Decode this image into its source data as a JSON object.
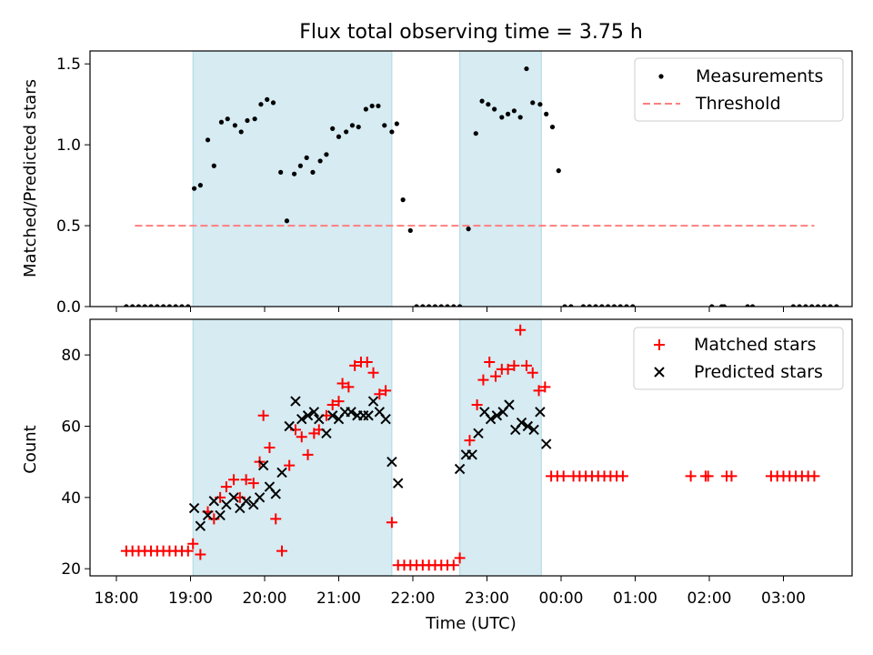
{
  "title": "Flux total observing time = 3.75 h",
  "colors": {
    "observing_span": "#add8e6",
    "measurement": "#000000",
    "threshold": "#ff7f7f",
    "matched": "#ff0000",
    "predicted": "#000000"
  },
  "chart_data": [
    {
      "type": "scatter",
      "ylabel": "Matched/Predicted stars",
      "ylim": [
        0,
        1.58
      ],
      "yticks": [
        "0.0",
        "0.5",
        "1.0",
        "1.5"
      ],
      "xlim": [
        "18:00",
        "03:55"
      ],
      "legend": {
        "placement": "top-right",
        "entries": [
          "Measurements",
          "Threshold"
        ]
      },
      "threshold": {
        "name": "Threshold",
        "value": 0.5,
        "x": [
          "18:15",
          "03:25"
        ]
      },
      "observing_spans": [
        [
          "19:02",
          "21:43"
        ],
        [
          "22:38",
          "23:44"
        ]
      ],
      "series": [
        {
          "name": "Measurements",
          "points": [
            [
              "18:08",
              0
            ],
            [
              "18:13",
              0
            ],
            [
              "18:18",
              0
            ],
            [
              "18:23",
              0
            ],
            [
              "18:28",
              0
            ],
            [
              "18:33",
              0
            ],
            [
              "18:38",
              0
            ],
            [
              "18:43",
              0
            ],
            [
              "18:48",
              0
            ],
            [
              "18:53",
              0
            ],
            [
              "18:58",
              0
            ],
            [
              "19:03",
              0.73
            ],
            [
              "19:08",
              0.75
            ],
            [
              "19:14",
              1.03
            ],
            [
              "19:19",
              0.87
            ],
            [
              "19:25",
              1.14
            ],
            [
              "19:30",
              1.16
            ],
            [
              "19:36",
              1.12
            ],
            [
              "19:41",
              1.08
            ],
            [
              "19:46",
              1.15
            ],
            [
              "19:52",
              1.16
            ],
            [
              "19:57",
              1.25
            ],
            [
              "20:02",
              1.28
            ],
            [
              "20:07",
              1.26
            ],
            [
              "20:13",
              0.83
            ],
            [
              "20:18",
              0.53
            ],
            [
              "20:24",
              0.82
            ],
            [
              "20:29",
              0.87
            ],
            [
              "20:34",
              0.92
            ],
            [
              "20:39",
              0.83
            ],
            [
              "20:45",
              0.9
            ],
            [
              "20:50",
              0.94
            ],
            [
              "20:55",
              1.1
            ],
            [
              "21:00",
              1.05
            ],
            [
              "21:06",
              1.08
            ],
            [
              "21:11",
              1.12
            ],
            [
              "21:16",
              1.11
            ],
            [
              "21:22",
              1.22
            ],
            [
              "21:27",
              1.24
            ],
            [
              "21:32",
              1.24
            ],
            [
              "21:37",
              1.12
            ],
            [
              "21:43",
              1.08
            ],
            [
              "21:47",
              1.13
            ],
            [
              "21:52",
              0.66
            ],
            [
              "21:58",
              0.47
            ],
            [
              "22:03",
              0
            ],
            [
              "22:08",
              0
            ],
            [
              "22:13",
              0
            ],
            [
              "22:18",
              0
            ],
            [
              "22:23",
              0
            ],
            [
              "22:28",
              0
            ],
            [
              "22:33",
              0
            ],
            [
              "22:38",
              0
            ],
            [
              "22:45",
              0.48
            ],
            [
              "22:51",
              1.07
            ],
            [
              "22:56",
              1.27
            ],
            [
              "23:01",
              1.25
            ],
            [
              "23:06",
              1.22
            ],
            [
              "23:12",
              1.17
            ],
            [
              "23:17",
              1.19
            ],
            [
              "23:22",
              1.21
            ],
            [
              "23:27",
              1.17
            ],
            [
              "23:32",
              1.47
            ],
            [
              "23:37",
              1.26
            ],
            [
              "23:43",
              1.25
            ],
            [
              "23:48",
              1.19
            ],
            [
              "23:53",
              1.11
            ],
            [
              "23:58",
              0.84
            ],
            [
              "00:03",
              0
            ],
            [
              "00:08",
              0
            ],
            [
              "00:18",
              0
            ],
            [
              "00:23",
              0
            ],
            [
              "00:28",
              0
            ],
            [
              "00:33",
              0
            ],
            [
              "00:38",
              0
            ],
            [
              "00:43",
              0
            ],
            [
              "00:48",
              0
            ],
            [
              "00:53",
              0
            ],
            [
              "00:58",
              0
            ],
            [
              "02:02",
              0
            ],
            [
              "02:10",
              0
            ],
            [
              "02:12",
              0
            ],
            [
              "02:31",
              0
            ],
            [
              "02:35",
              0
            ],
            [
              "03:08",
              0
            ],
            [
              "03:13",
              0
            ],
            [
              "03:18",
              0
            ],
            [
              "03:23",
              0
            ],
            [
              "03:28",
              0
            ],
            [
              "03:33",
              0
            ],
            [
              "03:38",
              0
            ],
            [
              "03:43",
              0
            ]
          ]
        }
      ]
    },
    {
      "type": "scatter",
      "xlabel": "Time (UTC)",
      "ylabel": "Count",
      "ylim": [
        18,
        90
      ],
      "yticks": [
        "20",
        "40",
        "60",
        "80"
      ],
      "xlim": [
        "18:00",
        "03:55"
      ],
      "xticks": [
        "18:00",
        "19:00",
        "20:00",
        "21:00",
        "22:00",
        "23:00",
        "00:00",
        "01:00",
        "02:00",
        "03:00"
      ],
      "legend": {
        "placement": "top-right",
        "entries": [
          "Matched stars",
          "Predicted stars"
        ]
      },
      "observing_spans": [
        [
          "19:02",
          "21:43"
        ],
        [
          "22:38",
          "23:44"
        ]
      ],
      "series": [
        {
          "name": "Matched stars",
          "points": [
            [
              "18:08",
              25
            ],
            [
              "18:13",
              25
            ],
            [
              "18:18",
              25
            ],
            [
              "18:23",
              25
            ],
            [
              "18:28",
              25
            ],
            [
              "18:33",
              25
            ],
            [
              "18:38",
              25
            ],
            [
              "18:43",
              25
            ],
            [
              "18:48",
              25
            ],
            [
              "18:53",
              25
            ],
            [
              "18:58",
              25
            ],
            [
              "19:02",
              27
            ],
            [
              "19:08",
              24
            ],
            [
              "19:14",
              36
            ],
            [
              "19:19",
              34
            ],
            [
              "19:24",
              40
            ],
            [
              "19:29",
              43
            ],
            [
              "19:35",
              45
            ],
            [
              "19:40",
              40
            ],
            [
              "19:45",
              45
            ],
            [
              "19:51",
              44
            ],
            [
              "19:56",
              50
            ],
            [
              "19:59",
              63
            ],
            [
              "20:04",
              54
            ],
            [
              "20:09",
              34
            ],
            [
              "20:14",
              25
            ],
            [
              "20:20",
              49
            ],
            [
              "20:25",
              59
            ],
            [
              "20:30",
              57
            ],
            [
              "20:35",
              52
            ],
            [
              "20:40",
              58
            ],
            [
              "20:44",
              59
            ],
            [
              "20:50",
              63
            ],
            [
              "20:55",
              66
            ],
            [
              "21:00",
              67
            ],
            [
              "21:03",
              72
            ],
            [
              "21:08",
              71
            ],
            [
              "21:13",
              77
            ],
            [
              "21:18",
              78
            ],
            [
              "21:23",
              78
            ],
            [
              "21:28",
              75
            ],
            [
              "21:33",
              69
            ],
            [
              "21:38",
              70
            ],
            [
              "21:43",
              33
            ],
            [
              "21:48",
              21
            ],
            [
              "21:53",
              21
            ],
            [
              "21:58",
              21
            ],
            [
              "22:03",
              21
            ],
            [
              "22:08",
              21
            ],
            [
              "22:13",
              21
            ],
            [
              "22:18",
              21
            ],
            [
              "22:23",
              21
            ],
            [
              "22:28",
              21
            ],
            [
              "22:33",
              21
            ],
            [
              "22:38",
              23
            ],
            [
              "22:46",
              56
            ],
            [
              "22:52",
              66
            ],
            [
              "22:57",
              73
            ],
            [
              "23:02",
              78
            ],
            [
              "23:07",
              74
            ],
            [
              "23:12",
              76
            ],
            [
              "23:17",
              76
            ],
            [
              "23:22",
              77
            ],
            [
              "23:27",
              87
            ],
            [
              "23:32",
              77
            ],
            [
              "23:37",
              75
            ],
            [
              "23:42",
              70
            ],
            [
              "23:47",
              71
            ],
            [
              "23:52",
              46
            ],
            [
              "23:57",
              46
            ],
            [
              "00:02",
              46
            ],
            [
              "00:10",
              46
            ],
            [
              "00:15",
              46
            ],
            [
              "00:20",
              46
            ],
            [
              "00:25",
              46
            ],
            [
              "00:30",
              46
            ],
            [
              "00:35",
              46
            ],
            [
              "00:40",
              46
            ],
            [
              "00:45",
              46
            ],
            [
              "00:50",
              46
            ],
            [
              "01:45",
              46
            ],
            [
              "01:57",
              46
            ],
            [
              "01:59",
              46
            ],
            [
              "02:14",
              46
            ],
            [
              "02:18",
              46
            ],
            [
              "02:50",
              46
            ],
            [
              "02:55",
              46
            ],
            [
              "03:00",
              46
            ],
            [
              "03:05",
              46
            ],
            [
              "03:10",
              46
            ],
            [
              "03:15",
              46
            ],
            [
              "03:20",
              46
            ],
            [
              "03:25",
              46
            ]
          ]
        },
        {
          "name": "Predicted stars",
          "points": [
            [
              "19:03",
              37
            ],
            [
              "19:08",
              32
            ],
            [
              "19:14",
              35
            ],
            [
              "19:19",
              39
            ],
            [
              "19:24",
              35
            ],
            [
              "19:29",
              38
            ],
            [
              "19:35",
              40
            ],
            [
              "19:40",
              37
            ],
            [
              "19:45",
              39
            ],
            [
              "19:51",
              38
            ],
            [
              "19:56",
              40
            ],
            [
              "19:59",
              49
            ],
            [
              "20:04",
              43
            ],
            [
              "20:09",
              41
            ],
            [
              "20:14",
              47
            ],
            [
              "20:20",
              60
            ],
            [
              "20:25",
              67
            ],
            [
              "20:30",
              62
            ],
            [
              "20:35",
              63
            ],
            [
              "20:40",
              64
            ],
            [
              "20:44",
              62
            ],
            [
              "20:50",
              58
            ],
            [
              "20:55",
              63
            ],
            [
              "21:00",
              62
            ],
            [
              "21:05",
              64
            ],
            [
              "21:10",
              64
            ],
            [
              "21:15",
              63
            ],
            [
              "21:20",
              63
            ],
            [
              "21:24",
              63
            ],
            [
              "21:28",
              67
            ],
            [
              "21:33",
              64
            ],
            [
              "21:38",
              62
            ],
            [
              "21:43",
              50
            ],
            [
              "21:48",
              44
            ],
            [
              "22:38",
              48
            ],
            [
              "22:43",
              52
            ],
            [
              "22:48",
              52
            ],
            [
              "22:53",
              58
            ],
            [
              "22:58",
              64
            ],
            [
              "23:03",
              62
            ],
            [
              "23:08",
              63
            ],
            [
              "23:13",
              64
            ],
            [
              "23:18",
              66
            ],
            [
              "23:23",
              59
            ],
            [
              "23:28",
              61
            ],
            [
              "23:33",
              60
            ],
            [
              "23:38",
              59
            ],
            [
              "23:43",
              64
            ],
            [
              "23:48",
              55
            ]
          ]
        }
      ]
    }
  ]
}
